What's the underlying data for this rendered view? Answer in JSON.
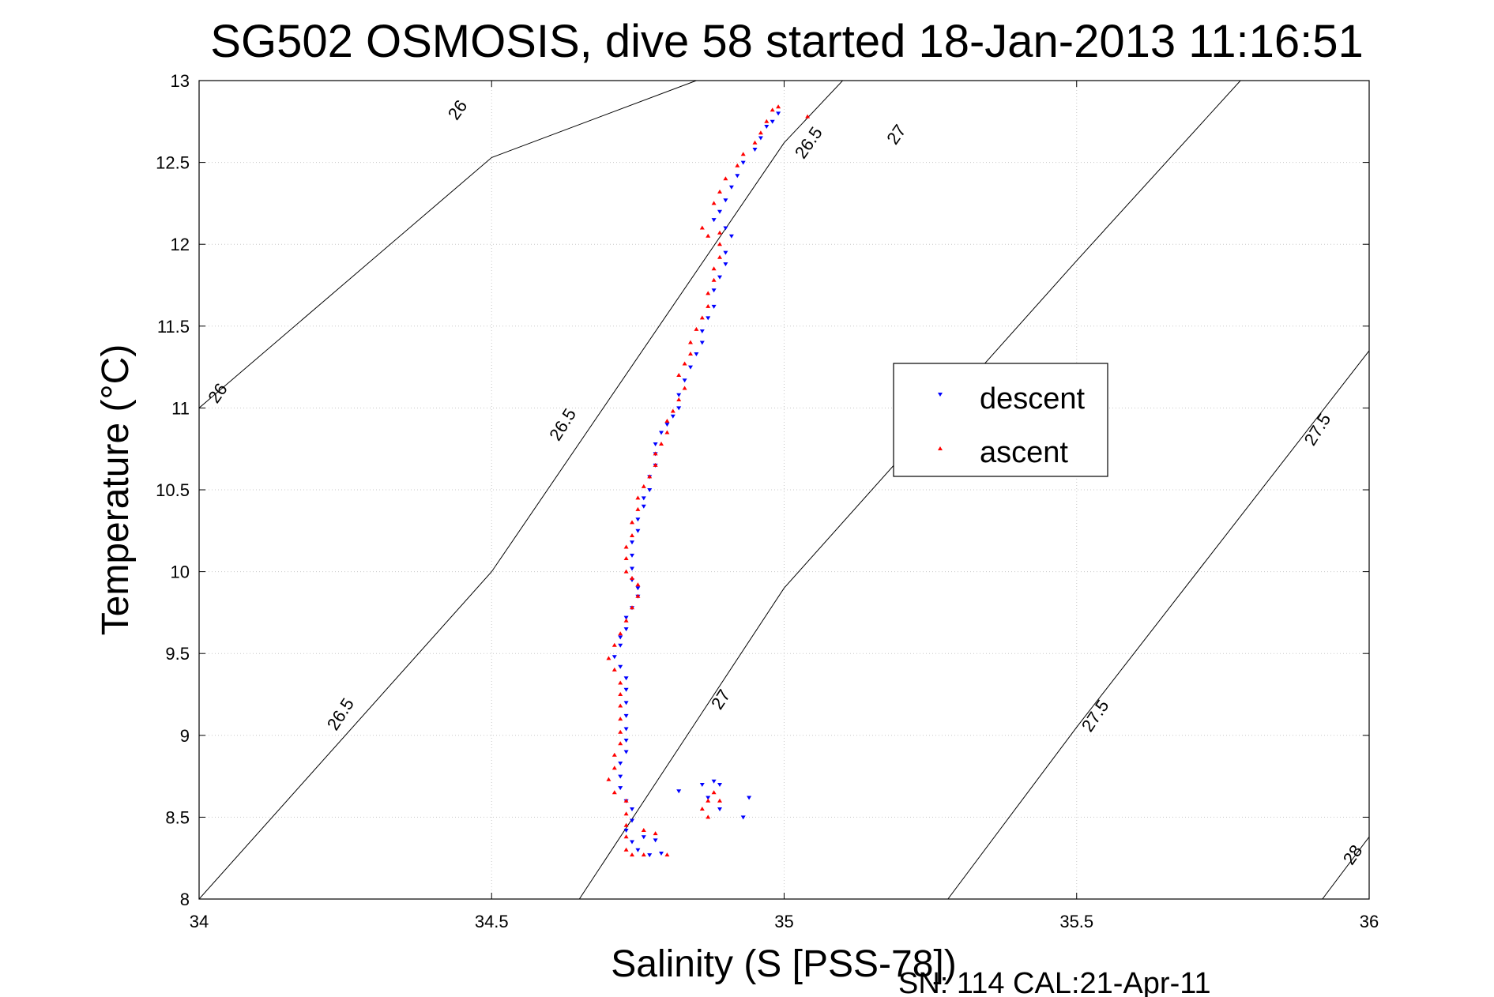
{
  "chart_data": {
    "type": "scatter",
    "title": "SG502 OSMOSIS, dive 58 started 18-Jan-2013 11:16:51",
    "xlabel": "Salinity (S [PSS-78])",
    "ylabel": "Temperature (°C)",
    "xlim": [
      34,
      36
    ],
    "ylim": [
      8,
      13
    ],
    "xticks": [
      "34",
      "34.5",
      "35",
      "35.5",
      "36"
    ],
    "yticks": [
      "8",
      "8.5",
      "9",
      "9.5",
      "10",
      "10.5",
      "11",
      "11.5",
      "12",
      "12.5",
      "13"
    ],
    "grid": true,
    "legend_position": "right",
    "footer": "SN: 114  CAL:21-Apr-11",
    "colors": {
      "descent": "#0000ff",
      "ascent": "#ff0000",
      "contour": "#000000",
      "grid": "#c8c8c8"
    },
    "density_contours": [
      {
        "label": "26",
        "points": [
          [
            34.0,
            11.0
          ],
          [
            34.5,
            12.53
          ],
          [
            34.85,
            13.0
          ]
        ]
      },
      {
        "label": "26.5",
        "points": [
          [
            34.0,
            8.0
          ],
          [
            34.5,
            10.0
          ],
          [
            35.0,
            12.62
          ],
          [
            35.1,
            13.0
          ]
        ]
      },
      {
        "label": "27",
        "points": [
          [
            34.65,
            8.0
          ],
          [
            35.0,
            9.9
          ],
          [
            35.5,
            11.9
          ],
          [
            35.78,
            13.0
          ]
        ]
      },
      {
        "label": "27.5",
        "points": [
          [
            35.28,
            8.0
          ],
          [
            35.5,
            9.05
          ],
          [
            36.0,
            11.35
          ]
        ]
      },
      {
        "label": "28",
        "points": [
          [
            35.92,
            8.0
          ],
          [
            36.0,
            8.38
          ]
        ]
      }
    ],
    "contour_labels": [
      {
        "text": "26",
        "x": 34.45,
        "y": 12.8,
        "angle": -55
      },
      {
        "text": "26",
        "x": 34.04,
        "y": 11.07,
        "angle": -55
      },
      {
        "text": "26.5",
        "x": 34.63,
        "y": 10.88,
        "angle": -58
      },
      {
        "text": "26.5",
        "x": 35.05,
        "y": 12.6,
        "angle": -55
      },
      {
        "text": "26.5",
        "x": 34.25,
        "y": 9.11,
        "angle": -57
      },
      {
        "text": "27",
        "x": 35.2,
        "y": 12.65,
        "angle": -55
      },
      {
        "text": "27",
        "x": 34.9,
        "y": 9.2,
        "angle": -57
      },
      {
        "text": "27.5",
        "x": 35.92,
        "y": 10.85,
        "angle": -58
      },
      {
        "text": "27.5",
        "x": 35.54,
        "y": 9.1,
        "angle": -56
      },
      {
        "text": "28",
        "x": 35.98,
        "y": 8.25,
        "angle": -55
      }
    ],
    "series": [
      {
        "name": "descent",
        "marker": "triangle-down",
        "points": [
          [
            34.99,
            12.8
          ],
          [
            34.98,
            12.75
          ],
          [
            34.97,
            12.72
          ],
          [
            34.96,
            12.65
          ],
          [
            34.95,
            12.58
          ],
          [
            34.93,
            12.5
          ],
          [
            34.92,
            12.42
          ],
          [
            34.91,
            12.35
          ],
          [
            34.9,
            12.27
          ],
          [
            34.89,
            12.2
          ],
          [
            34.88,
            12.15
          ],
          [
            34.9,
            12.1
          ],
          [
            34.91,
            12.05
          ],
          [
            34.9,
            11.95
          ],
          [
            34.9,
            11.88
          ],
          [
            34.89,
            11.8
          ],
          [
            34.88,
            11.72
          ],
          [
            34.88,
            11.62
          ],
          [
            34.87,
            11.55
          ],
          [
            34.86,
            11.47
          ],
          [
            34.86,
            11.4
          ],
          [
            34.85,
            11.33
          ],
          [
            34.84,
            11.25
          ],
          [
            34.83,
            11.17
          ],
          [
            34.82,
            11.08
          ],
          [
            34.82,
            11.0
          ],
          [
            34.81,
            10.95
          ],
          [
            34.8,
            10.9
          ],
          [
            34.79,
            10.85
          ],
          [
            34.78,
            10.78
          ],
          [
            34.78,
            10.72
          ],
          [
            34.78,
            10.65
          ],
          [
            34.77,
            10.58
          ],
          [
            34.77,
            10.5
          ],
          [
            34.76,
            10.45
          ],
          [
            34.76,
            10.4
          ],
          [
            34.75,
            10.32
          ],
          [
            34.75,
            10.25
          ],
          [
            34.74,
            10.18
          ],
          [
            34.74,
            10.1
          ],
          [
            34.74,
            10.02
          ],
          [
            34.74,
            9.95
          ],
          [
            34.75,
            9.9
          ],
          [
            34.75,
            9.85
          ],
          [
            34.74,
            9.78
          ],
          [
            34.73,
            9.72
          ],
          [
            34.73,
            9.65
          ],
          [
            34.72,
            9.6
          ],
          [
            34.72,
            9.55
          ],
          [
            34.71,
            9.48
          ],
          [
            34.72,
            9.42
          ],
          [
            34.73,
            9.35
          ],
          [
            34.73,
            9.28
          ],
          [
            34.73,
            9.2
          ],
          [
            34.73,
            9.12
          ],
          [
            34.73,
            9.04
          ],
          [
            34.73,
            8.97
          ],
          [
            34.73,
            8.9
          ],
          [
            34.72,
            8.83
          ],
          [
            34.72,
            8.75
          ],
          [
            34.72,
            8.68
          ],
          [
            34.73,
            8.6
          ],
          [
            34.74,
            8.55
          ],
          [
            34.74,
            8.48
          ],
          [
            34.73,
            8.42
          ],
          [
            34.74,
            8.35
          ],
          [
            34.75,
            8.3
          ],
          [
            34.77,
            8.27
          ],
          [
            34.79,
            8.28
          ],
          [
            34.78,
            8.36
          ],
          [
            34.76,
            8.38
          ],
          [
            34.82,
            8.66
          ],
          [
            34.86,
            8.7
          ],
          [
            34.88,
            8.72
          ],
          [
            34.89,
            8.7
          ],
          [
            34.87,
            8.62
          ],
          [
            34.89,
            8.55
          ],
          [
            34.93,
            8.5
          ],
          [
            34.94,
            8.62
          ]
        ]
      },
      {
        "name": "ascent",
        "marker": "triangle-up",
        "points": [
          [
            34.99,
            12.84
          ],
          [
            34.98,
            12.82
          ],
          [
            34.97,
            12.75
          ],
          [
            34.96,
            12.68
          ],
          [
            34.95,
            12.62
          ],
          [
            34.93,
            12.55
          ],
          [
            34.92,
            12.48
          ],
          [
            34.9,
            12.4
          ],
          [
            34.89,
            12.32
          ],
          [
            34.88,
            12.25
          ],
          [
            34.86,
            12.1
          ],
          [
            34.87,
            12.05
          ],
          [
            34.89,
            12.07
          ],
          [
            34.89,
            12.0
          ],
          [
            34.89,
            11.92
          ],
          [
            34.88,
            11.85
          ],
          [
            34.88,
            11.78
          ],
          [
            34.87,
            11.7
          ],
          [
            34.87,
            11.62
          ],
          [
            34.86,
            11.55
          ],
          [
            34.85,
            11.48
          ],
          [
            34.84,
            11.4
          ],
          [
            34.84,
            11.33
          ],
          [
            34.83,
            11.27
          ],
          [
            34.82,
            11.2
          ],
          [
            34.83,
            11.12
          ],
          [
            34.82,
            11.05
          ],
          [
            34.81,
            10.98
          ],
          [
            34.8,
            10.92
          ],
          [
            34.8,
            10.85
          ],
          [
            34.79,
            10.78
          ],
          [
            34.78,
            10.72
          ],
          [
            34.78,
            10.65
          ],
          [
            34.77,
            10.58
          ],
          [
            34.76,
            10.52
          ],
          [
            34.75,
            10.45
          ],
          [
            34.75,
            10.38
          ],
          [
            34.74,
            10.3
          ],
          [
            34.74,
            10.22
          ],
          [
            34.73,
            10.15
          ],
          [
            34.73,
            10.08
          ],
          [
            34.73,
            10.0
          ],
          [
            34.74,
            9.96
          ],
          [
            34.75,
            9.92
          ],
          [
            34.75,
            9.85
          ],
          [
            34.74,
            9.78
          ],
          [
            34.73,
            9.7
          ],
          [
            34.72,
            9.62
          ],
          [
            34.71,
            9.55
          ],
          [
            34.7,
            9.47
          ],
          [
            34.71,
            9.4
          ],
          [
            34.72,
            9.32
          ],
          [
            34.72,
            9.25
          ],
          [
            34.72,
            9.18
          ],
          [
            34.72,
            9.1
          ],
          [
            34.72,
            9.02
          ],
          [
            34.72,
            8.95
          ],
          [
            34.71,
            8.88
          ],
          [
            34.71,
            8.8
          ],
          [
            34.7,
            8.73
          ],
          [
            34.71,
            8.65
          ],
          [
            34.73,
            8.6
          ],
          [
            34.73,
            8.52
          ],
          [
            34.73,
            8.45
          ],
          [
            34.73,
            8.38
          ],
          [
            34.73,
            8.3
          ],
          [
            34.74,
            8.27
          ],
          [
            34.76,
            8.27
          ],
          [
            34.8,
            8.27
          ],
          [
            34.78,
            8.4
          ],
          [
            34.76,
            8.42
          ],
          [
            34.86,
            8.55
          ],
          [
            34.87,
            8.6
          ],
          [
            34.88,
            8.65
          ],
          [
            34.89,
            8.6
          ],
          [
            34.87,
            8.5
          ],
          [
            35.04,
            12.78
          ]
        ]
      }
    ]
  }
}
